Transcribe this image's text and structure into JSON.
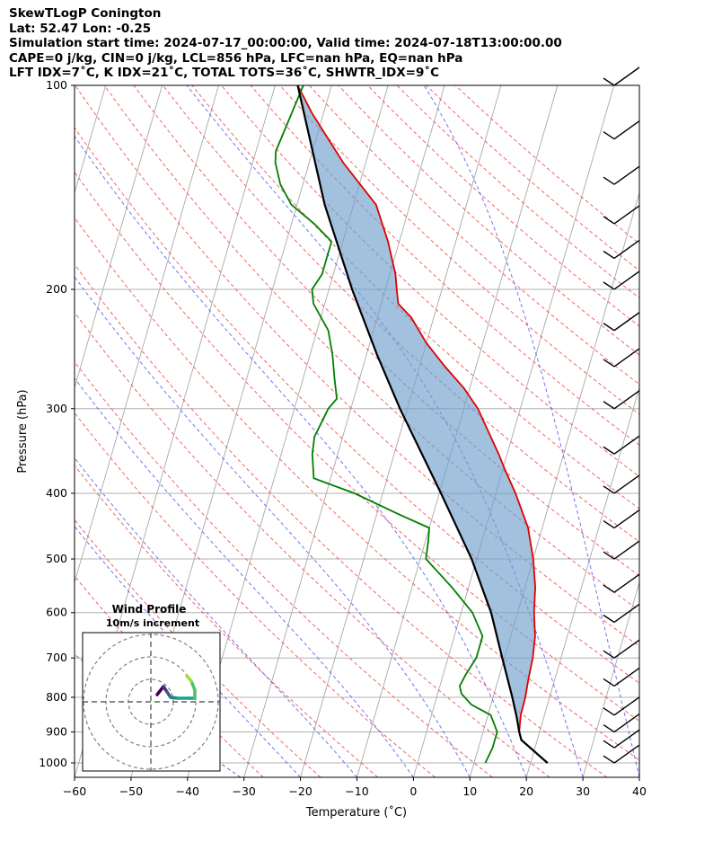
{
  "header": {
    "line1": "SkewTLogP Conington",
    "line2": "Lat: 52.47   Lon: -0.25",
    "line3": "Simulation start time: 2024-07-17_00:00:00, Valid time: 2024-07-18T13:00:00.00",
    "line4": "CAPE=0 j/kg, CIN=0 j/kg, LCL=856 hPa, LFC=nan hPa, EQ=nan hPa",
    "line5": "LFT IDX=7˚C, K IDX=21˚C, TOTAL TOTS=36˚C, SHWTR_IDX=9˚C"
  },
  "chart_data": {
    "type": "line",
    "xlabel": "Temperature (˚C)",
    "ylabel": "Pressure (hPa)",
    "xlim": [
      -60,
      40
    ],
    "ylim": [
      1050,
      100
    ],
    "y_scale": "log",
    "skew": true,
    "grid": true,
    "x_ticks": [
      -60,
      -50,
      -40,
      -30,
      -20,
      -10,
      0,
      10,
      20,
      30,
      40
    ],
    "y_ticks": [
      1000,
      900,
      800,
      700,
      600,
      500,
      400,
      300,
      200,
      100
    ],
    "series": [
      {
        "color": "#e00000",
        "points": [
          [
            1000,
            23
          ],
          [
            925,
            17.2
          ],
          [
            900,
            16.4
          ],
          [
            850,
            15.8
          ],
          [
            800,
            15.7
          ],
          [
            750,
            15.3
          ],
          [
            700,
            15.0
          ],
          [
            650,
            14.3
          ],
          [
            600,
            12.9
          ],
          [
            550,
            11.8
          ],
          [
            500,
            10.0
          ],
          [
            450,
            7.5
          ],
          [
            400,
            3.5
          ],
          [
            370,
            0.5
          ],
          [
            350,
            -1.5
          ],
          [
            320,
            -5
          ],
          [
            300,
            -7.5
          ],
          [
            280,
            -11
          ],
          [
            260,
            -15.5
          ],
          [
            240,
            -20
          ],
          [
            220,
            -24
          ],
          [
            210,
            -27
          ],
          [
            200,
            -28
          ],
          [
            190,
            -29
          ],
          [
            170,
            -32
          ],
          [
            150,
            -36
          ],
          [
            130,
            -44
          ],
          [
            110,
            -52
          ],
          [
            100,
            -56
          ]
        ]
      },
      {
        "color": "#008000",
        "points": [
          [
            1000,
            12
          ],
          [
            950,
            12.5
          ],
          [
            900,
            12.5
          ],
          [
            850,
            10.5
          ],
          [
            820,
            6.5
          ],
          [
            790,
            4.2
          ],
          [
            770,
            3.5
          ],
          [
            740,
            4
          ],
          [
            720,
            4.5
          ],
          [
            700,
            5.0
          ],
          [
            650,
            5.0
          ],
          [
            600,
            2.0
          ],
          [
            550,
            -3
          ],
          [
            500,
            -9
          ],
          [
            470,
            -9.5
          ],
          [
            450,
            -10
          ],
          [
            430,
            -16
          ],
          [
            400,
            -25
          ],
          [
            380,
            -33
          ],
          [
            350,
            -34.5
          ],
          [
            330,
            -35
          ],
          [
            300,
            -34
          ],
          [
            290,
            -33
          ],
          [
            270,
            -34.5
          ],
          [
            250,
            -36
          ],
          [
            230,
            -38
          ],
          [
            210,
            -42
          ],
          [
            200,
            -43
          ],
          [
            190,
            -42
          ],
          [
            170,
            -42
          ],
          [
            160,
            -46
          ],
          [
            150,
            -51
          ],
          [
            140,
            -54
          ],
          [
            130,
            -56
          ],
          [
            125,
            -56.5
          ],
          [
            100,
            -55
          ]
        ]
      },
      {
        "color": "#000000",
        "points": [
          [
            1000,
            23
          ],
          [
            925,
            17.2
          ],
          [
            900,
            16.4
          ],
          [
            856,
            15.2
          ],
          [
            800,
            13.4
          ],
          [
            700,
            9.6
          ],
          [
            600,
            5.3
          ],
          [
            500,
            -0.9
          ],
          [
            400,
            -9.7
          ],
          [
            300,
            -21.3
          ],
          [
            250,
            -28.1
          ],
          [
            200,
            -35.9
          ],
          [
            150,
            -45.1
          ],
          [
            100,
            -56.0
          ]
        ]
      }
    ],
    "wind_profile": {
      "title": "Wind Profile",
      "subtitle": "10m/s increment"
    }
  }
}
